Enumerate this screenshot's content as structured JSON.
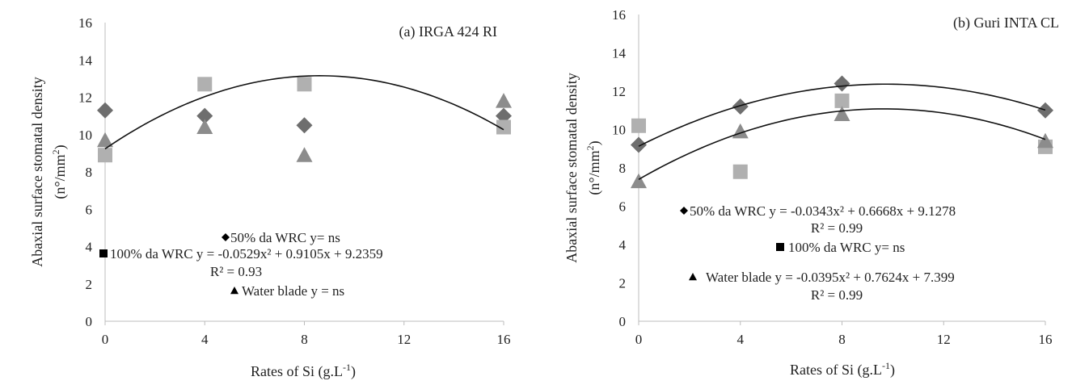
{
  "chart_data": [
    {
      "type": "scatter",
      "title": "(a) IRGA 424 RI",
      "xlabel": "Rates of  Si (g.L",
      "xlabel_sup": "-1",
      "xlabel_end": ")",
      "ylabel": "Abaxial surface stomatal density",
      "ylabel_unit": "(n°/mm",
      "ylabel_unit_sup": "2",
      "ylabel_unit_end": ")",
      "x_ticks": [
        "0",
        "4",
        "8",
        "12",
        "16"
      ],
      "y_ticks": [
        "0",
        "2",
        "4",
        "6",
        "8",
        "10",
        "12",
        "14",
        "16"
      ],
      "xlim": [
        0,
        16
      ],
      "ylim": [
        0,
        16
      ],
      "grid": false,
      "series": [
        {
          "name": "50% da WRC",
          "marker": "diamond",
          "color": "#6e6e6e",
          "x": [
            0,
            4,
            8,
            16
          ],
          "y": [
            11.3,
            11.0,
            10.5,
            11.0
          ]
        },
        {
          "name": "100% da WRC",
          "marker": "square",
          "color": "#b0b0b0",
          "x": [
            0,
            4,
            8,
            16
          ],
          "y": [
            8.9,
            12.7,
            12.7,
            10.4
          ]
        },
        {
          "name": "Water blade",
          "marker": "triangle",
          "color": "#8c8c8c",
          "x": [
            0,
            4,
            8,
            16
          ],
          "y": [
            9.7,
            10.4,
            8.9,
            11.8
          ]
        }
      ],
      "trendlines": [
        {
          "a": -0.0529,
          "b": 0.9105,
          "c": 9.2359
        }
      ],
      "legend": [
        {
          "marker": "diamond",
          "text": "50% da WRC y=  ns"
        },
        {
          "marker": "square",
          "text": "100% da WRC y = -0.0529x² + 0.9105x + 9.2359"
        },
        {
          "marker": "none",
          "text": "R² = 0.93"
        },
        {
          "marker": "triangle",
          "text": "Water blade y = ns"
        }
      ]
    },
    {
      "type": "scatter",
      "title": "(b) Guri INTA CL",
      "xlabel": "Rates of Si (g.L",
      "xlabel_sup": "-1",
      "xlabel_end": ")",
      "ylabel": "Abaxial surface stomatal density",
      "ylabel_unit": "(n°/mm",
      "ylabel_unit_sup": "2",
      "ylabel_unit_end": ")",
      "x_ticks": [
        "0",
        "4",
        "8",
        "12",
        "16"
      ],
      "y_ticks": [
        "0",
        "2",
        "4",
        "6",
        "8",
        "10",
        "12",
        "14",
        "16"
      ],
      "xlim": [
        0,
        16
      ],
      "ylim": [
        0,
        16
      ],
      "grid": false,
      "series": [
        {
          "name": "50% da WRC",
          "marker": "diamond",
          "color": "#6e6e6e",
          "x": [
            0,
            4,
            8,
            16
          ],
          "y": [
            9.2,
            11.2,
            12.4,
            11.0
          ]
        },
        {
          "name": "100% da WRC",
          "marker": "square",
          "color": "#b0b0b0",
          "x": [
            0,
            4,
            8,
            16
          ],
          "y": [
            10.2,
            7.8,
            11.5,
            9.1
          ]
        },
        {
          "name": "Water blade",
          "marker": "triangle",
          "color": "#8c8c8c",
          "x": [
            0,
            4,
            8,
            16
          ],
          "y": [
            7.3,
            9.9,
            10.8,
            9.4
          ]
        }
      ],
      "trendlines": [
        {
          "a": -0.0343,
          "b": 0.6668,
          "c": 9.1278
        },
        {
          "a": -0.0395,
          "b": 0.7624,
          "c": 7.399
        }
      ],
      "legend": [
        {
          "marker": "diamond",
          "text": "50% da WRC y = -0.0343x² + 0.6668x + 9.1278"
        },
        {
          "marker": "none",
          "text": "R² = 0.99"
        },
        {
          "marker": "square",
          "text": "100% da WRC y= ns"
        },
        {
          "marker": "triangle",
          "text": "Water blade  y = -0.0395x² + 0.7624x + 7.399"
        },
        {
          "marker": "none",
          "text": "R² = 0.99"
        }
      ]
    }
  ]
}
